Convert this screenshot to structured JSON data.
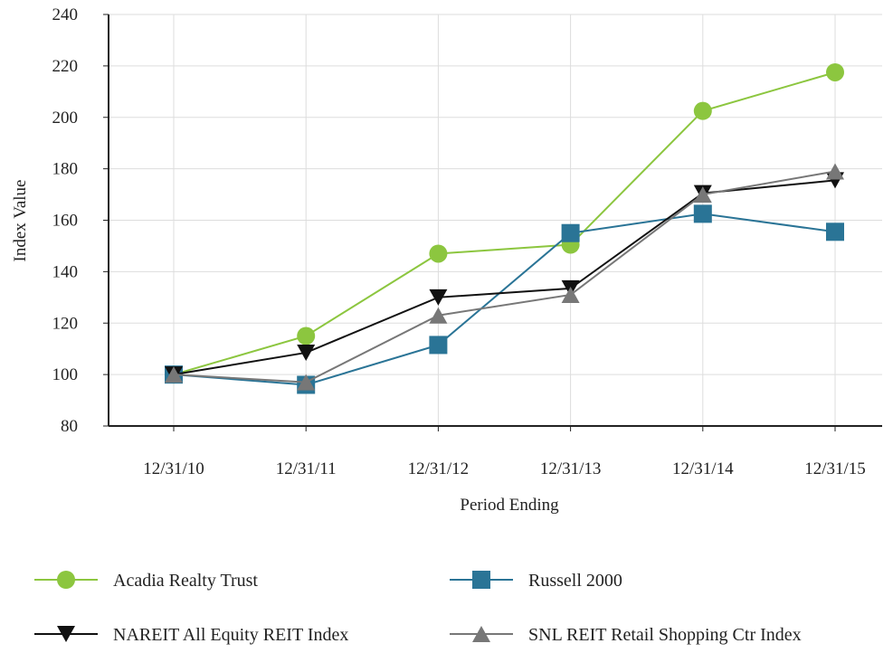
{
  "chart_data": {
    "type": "line",
    "categories": [
      "12/31/10",
      "12/31/11",
      "12/31/12",
      "12/31/13",
      "12/31/14",
      "12/31/15"
    ],
    "series": [
      {
        "name": "Acadia Realty Trust",
        "values": [
          100,
          115,
          147,
          150.5,
          202.5,
          217.5
        ],
        "color": "#8CC63F",
        "marker": "circle"
      },
      {
        "name": "Russell 2000",
        "values": [
          100,
          96,
          111.5,
          155,
          162.5,
          155.5
        ],
        "color": "#2A7496",
        "marker": "square"
      },
      {
        "name": "NAREIT All Equity REIT Index",
        "values": [
          100,
          108.5,
          130,
          133.5,
          170.5,
          175.5
        ],
        "color": "#111111",
        "marker": "triangle-down"
      },
      {
        "name": "SNL REIT Retail Shopping Ctr Index",
        "values": [
          100,
          97,
          123,
          131,
          170,
          179
        ],
        "color": "#777777",
        "marker": "triangle-up"
      }
    ],
    "xlabel": "Period Ending",
    "ylabel": "Index Value",
    "ylim": [
      80,
      240
    ],
    "yticks": [
      80,
      100,
      120,
      140,
      160,
      180,
      200,
      220,
      240
    ],
    "grid": true,
    "legend_position": "bottom"
  }
}
